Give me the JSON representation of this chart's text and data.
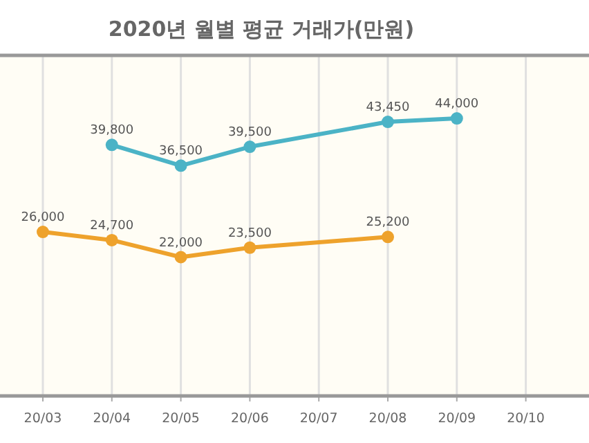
{
  "chart_data": {
    "type": "line",
    "title": "2020년 월별 평균 거래가(만원)",
    "categories": [
      "20/03",
      "20/04",
      "20/05",
      "20/06",
      "20/07",
      "20/08",
      "20/09",
      "20/10"
    ],
    "series": [
      {
        "color": "#4bb3c6",
        "values": [
          null,
          39800,
          36500,
          39500,
          null,
          43450,
          44000,
          null
        ],
        "value_labels": [
          null,
          "39,800",
          "36,500",
          "39,500",
          null,
          "43,450",
          "44,000",
          null
        ]
      },
      {
        "color": "#eea22c",
        "values": [
          26000,
          24700,
          22000,
          23500,
          null,
          25200,
          null,
          null
        ],
        "value_labels": [
          "26,000",
          "24,700",
          "22,000",
          "23,500",
          null,
          "25,200",
          null,
          null
        ]
      }
    ],
    "tick_labels": "x",
    "grid": "x",
    "marker": "circle"
  }
}
